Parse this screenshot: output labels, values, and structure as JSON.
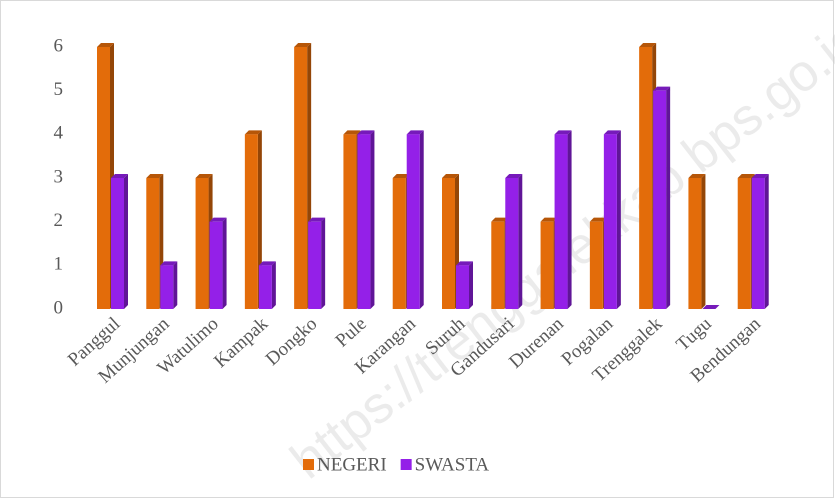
{
  "chart_data": {
    "type": "bar3d",
    "watermark": "https://trenggalekkab.bps.go.id",
    "categories": [
      "Panggul",
      "Munjungan",
      "Watulimo",
      "Kampak",
      "Dongko",
      "Pule",
      "Karangan",
      "Suruh",
      "Gandusari",
      "Durenan",
      "Pogalan",
      "Trenggalek",
      "Tugu",
      "Bendungan"
    ],
    "series": [
      {
        "name": "NEGERI",
        "color": "#e36c0a",
        "values": [
          6,
          3,
          3,
          4,
          6,
          4,
          3,
          3,
          2,
          2,
          2,
          6,
          3,
          3
        ]
      },
      {
        "name": "SWASTA",
        "color": "#9420e8",
        "values": [
          3,
          1,
          2,
          1,
          2,
          4,
          4,
          1,
          3,
          4,
          4,
          5,
          0,
          3
        ]
      }
    ],
    "ylim": [
      0,
      6
    ],
    "yticks": [
      0,
      1,
      2,
      3,
      4,
      5,
      6
    ],
    "grid": false,
    "legend": "bottom"
  }
}
